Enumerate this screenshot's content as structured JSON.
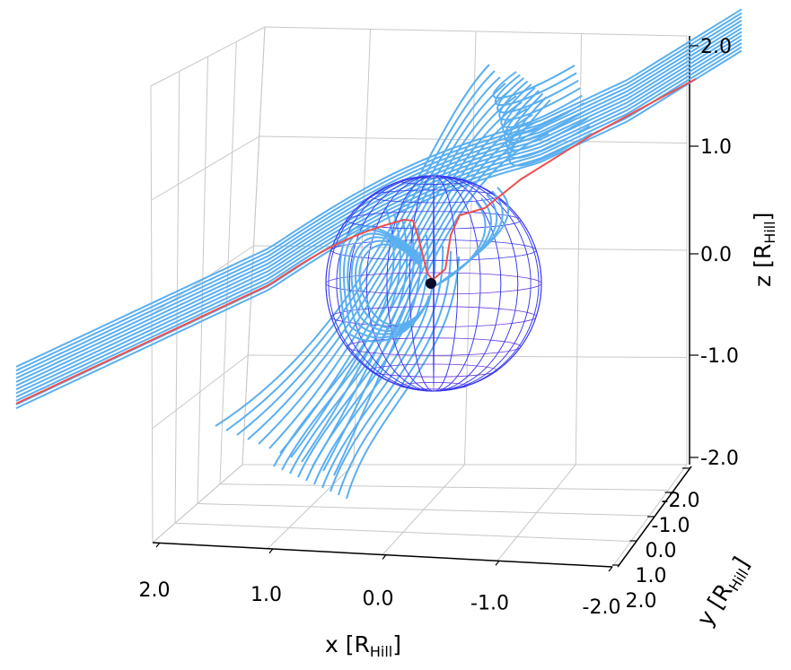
{
  "chart_data": {
    "type": "line",
    "projection": "3d",
    "title": "",
    "xlabel": "x [R",
    "ylabel": "y [R",
    "zlabel": "z [R",
    "label_subscript": "Hill",
    "label_close": "]",
    "xlim": [
      2.0,
      -2.0
    ],
    "ylim": [
      -2.0,
      2.0
    ],
    "zlim": [
      -2.0,
      2.0
    ],
    "x_ticks": [
      "2.0",
      "1.0",
      "0.0",
      "-1.0",
      "-2.0"
    ],
    "y_ticks": [
      "-2.0",
      "-1.0",
      "0.0",
      "1.0",
      "2.0"
    ],
    "z_ticks": [
      "2.0",
      "1.0",
      "0.0",
      "-1.0",
      "-2.0"
    ],
    "grid": true,
    "legend": "none",
    "colors": {
      "streamlines": "#5aaff0",
      "highlight": "#ef4f4f",
      "hill_sphere": "#3a3af0",
      "planet": "#0a0a2a"
    },
    "series": [
      {
        "values": [
          [
            -2.4,
            1.55
          ],
          [
            -1.2,
            0.6
          ],
          [
            -0.5,
            0.25
          ],
          [
            -0.15,
            -0.35
          ],
          [
            0.0,
            -0.35
          ],
          [
            0.3,
            0.15
          ],
          [
            1.0,
            0.65
          ],
          [
            2.4,
            1.85
          ]
        ]
      }
    ],
    "hill_sphere_radius": 1.0,
    "planet_position": [
      0.0,
      0.0,
      0.0
    ]
  }
}
